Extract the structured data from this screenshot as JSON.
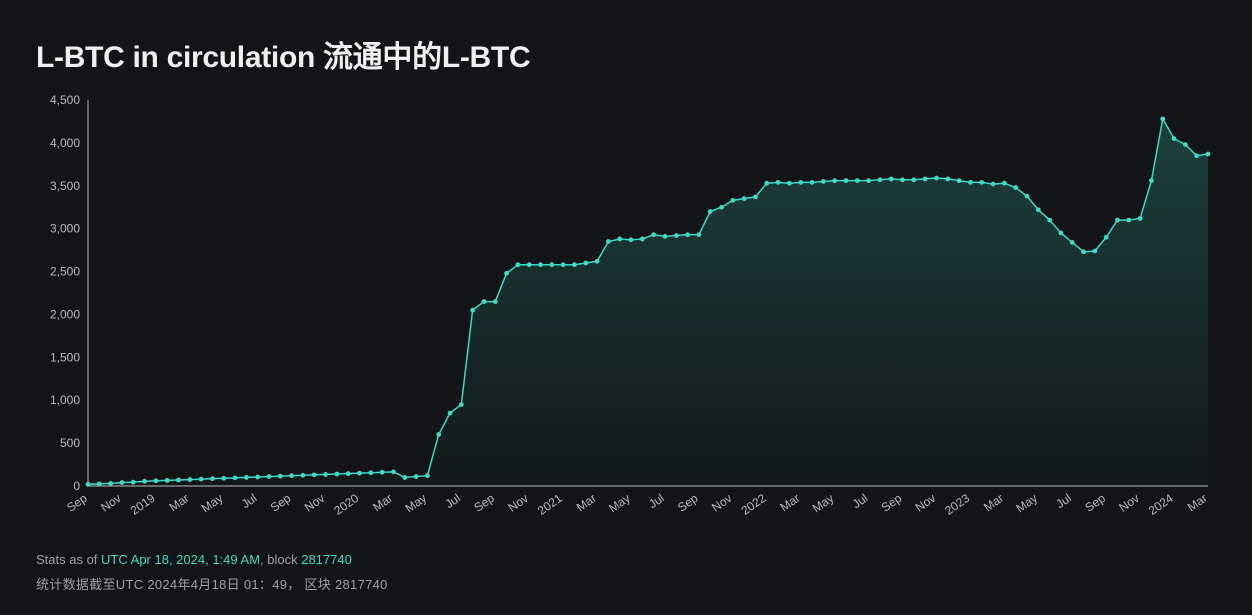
{
  "title": "L-BTC in circulation 流通中的L-BTC",
  "chart": {
    "type": "area",
    "background_color": "#121417",
    "line_color": "#3fd9c4",
    "area_fill_top": "rgba(63,217,196,0.22)",
    "area_fill_bottom": "rgba(63,217,196,0.02)",
    "marker_color": "#3fd9c4",
    "marker_radius": 2.4,
    "line_width": 1.5,
    "axis_color": "#b8bbbf",
    "tick_font_size": 12,
    "ylim": [
      0,
      4500
    ],
    "ytick_step": 500,
    "y_ticks": [
      0,
      500,
      1000,
      1500,
      2000,
      2500,
      3000,
      3500,
      4000,
      4500
    ],
    "y_tick_labels": [
      "0",
      "500",
      "1,000",
      "1,500",
      "2,000",
      "2,500",
      "3,000",
      "3,500",
      "4,000",
      "4,500"
    ],
    "x_labels": [
      "Sep",
      "Nov",
      "2019",
      "Mar",
      "May",
      "Jul",
      "Sep",
      "Nov",
      "2020",
      "Mar",
      "May",
      "Jul",
      "Sep",
      "Nov",
      "2021",
      "Mar",
      "May",
      "Jul",
      "Sep",
      "Nov",
      "2022",
      "Mar",
      "May",
      "Jul",
      "Sep",
      "Nov",
      "2023",
      "Mar",
      "May",
      "Jul",
      "Sep",
      "Nov",
      "2024",
      "Mar"
    ],
    "values": [
      20,
      25,
      30,
      40,
      45,
      55,
      60,
      65,
      70,
      75,
      80,
      85,
      90,
      95,
      100,
      105,
      110,
      115,
      120,
      125,
      130,
      135,
      140,
      145,
      150,
      155,
      160,
      165,
      100,
      110,
      120,
      600,
      850,
      950,
      2050,
      2150,
      2150,
      2480,
      2580,
      2580,
      2580,
      2580,
      2580,
      2580,
      2600,
      2620,
      2850,
      2880,
      2870,
      2880,
      2930,
      2910,
      2920,
      2930,
      2930,
      3200,
      3250,
      3330,
      3350,
      3370,
      3530,
      3540,
      3530,
      3540,
      3540,
      3550,
      3560,
      3560,
      3560,
      3560,
      3570,
      3580,
      3570,
      3570,
      3580,
      3590,
      3580,
      3560,
      3540,
      3540,
      3520,
      3530,
      3480,
      3380,
      3220,
      3100,
      2950,
      2840,
      2730,
      2740,
      2900,
      3100,
      3100,
      3120,
      3560,
      4280,
      4050,
      3980,
      3850,
      3870
    ]
  },
  "footer": {
    "prefix": "Stats as of ",
    "timestamp": "UTC Apr 18, 2024, 1:49 AM",
    "block_label": ", block ",
    "block_number": "2817740",
    "line2": "统计数据截至UTC 2024年4月18日 01：49，  区块 2817740"
  }
}
